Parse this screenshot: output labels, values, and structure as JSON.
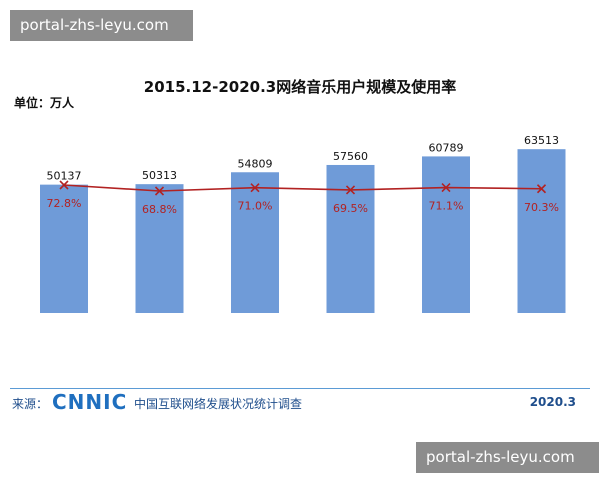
{
  "watermark": {
    "badge_top": "portal-zhs-leyu.com",
    "badge_bottom": "portal-zhs-leyu.com"
  },
  "chart_data": {
    "type": "bar",
    "title": "2015.12-2020.3网络音乐用户规模及使用率",
    "unit_label": "单位：万人",
    "categories": [
      "",
      "",
      "",
      "",
      "",
      ""
    ],
    "series": [
      {
        "values": [
          50137,
          50313,
          54809,
          57560,
          60789,
          63513
        ],
        "color": "#6f9bd8"
      },
      {
        "values": [
          72.8,
          68.8,
          71.0,
          69.5,
          71.1,
          70.3
        ],
        "color": "#b22222",
        "type": "line"
      }
    ],
    "bar_labels": [
      "50137",
      "50313",
      "54809",
      "57560",
      "60789",
      "63513"
    ],
    "rate_labels": [
      "72.8%",
      "68.8%",
      "71.0%",
      "69.5%",
      "71.1%",
      "70.3%"
    ]
  },
  "footer": {
    "source_label": "来源：",
    "logo": "CNNIC",
    "survey_name": "中国互联网络发展状况统计调查",
    "date": "2020.3"
  }
}
